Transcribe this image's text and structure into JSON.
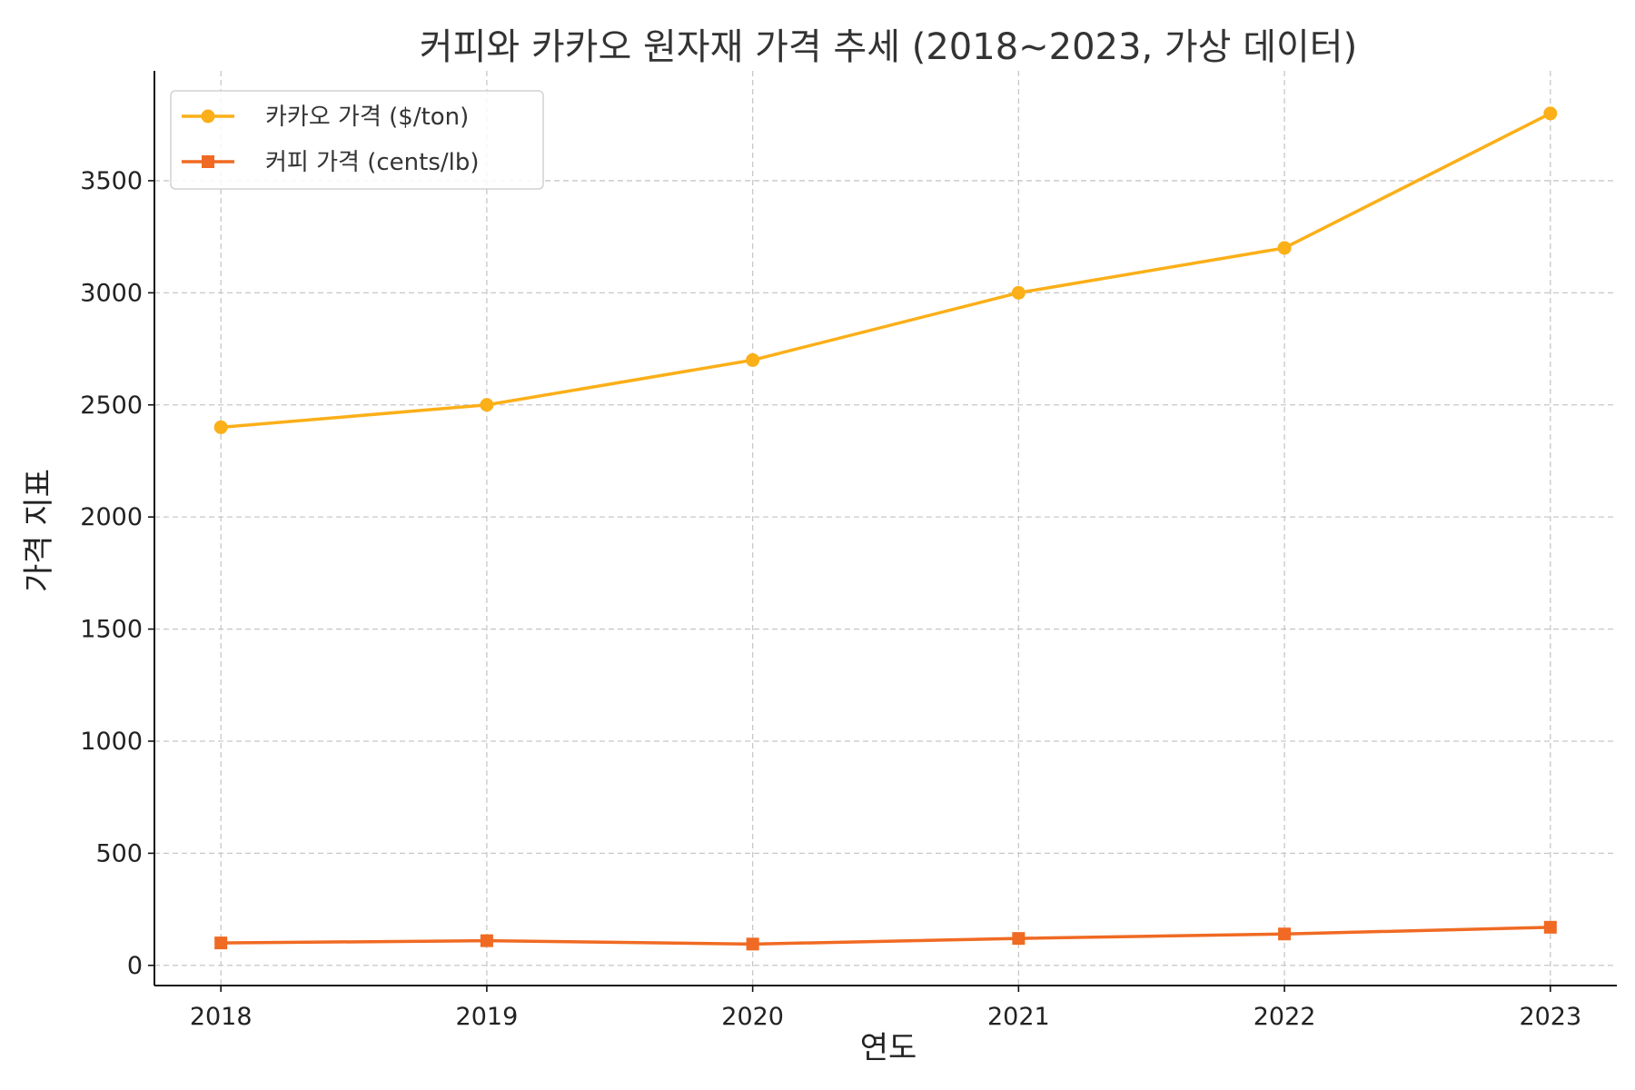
{
  "chart_data": {
    "type": "line",
    "title": "커피와 카카오 원자재 가격 추세 (2018~2023, 가상 데이터)",
    "xlabel": "연도",
    "ylabel": "가격 지표",
    "x": [
      "2018",
      "2019",
      "2020",
      "2021",
      "2022",
      "2023"
    ],
    "xlim": [
      2017.75,
      2023.25
    ],
    "ylim": [
      -90,
      3990
    ],
    "yticks": [
      0,
      500,
      1000,
      1500,
      2000,
      2500,
      3000,
      3500
    ],
    "ytick_labels": [
      "0",
      "500",
      "1000",
      "1500",
      "2000",
      "2500",
      "3000",
      "3500"
    ],
    "grid": true,
    "legend_position": "top-left",
    "series": [
      {
        "name": "카카오 가격 ($/ton)",
        "values": [
          2400,
          2500,
          2700,
          3000,
          3200,
          3800
        ],
        "color": "#FBAF18",
        "marker": "circle"
      },
      {
        "name": "커피 가격 (cents/lb)",
        "values": [
          100,
          110,
          95,
          120,
          140,
          170
        ],
        "color": "#F06A23",
        "marker": "square"
      }
    ]
  }
}
